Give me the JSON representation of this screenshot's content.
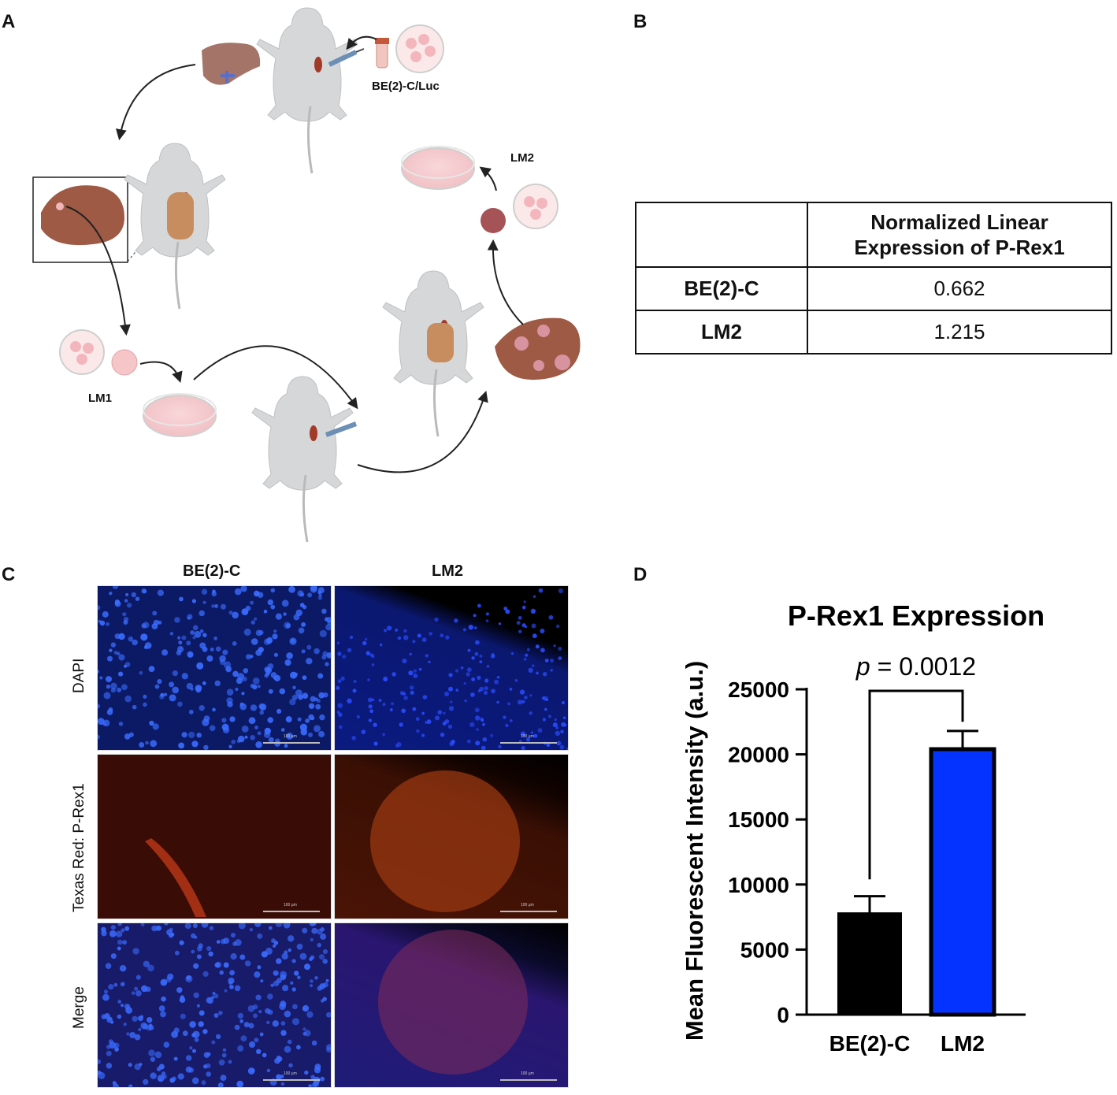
{
  "panels": {
    "a": "A",
    "b": "B",
    "c": "C",
    "d": "D"
  },
  "schematic": {
    "cell_line_label": "BE(2)-C/Luc",
    "lm1_label": "LM1",
    "lm2_label": "LM2"
  },
  "table": {
    "header": [
      "",
      "Normalized Linear Expression of P-Rex1"
    ],
    "rows": [
      {
        "name": "BE(2)-C",
        "value": "0.662"
      },
      {
        "name": "LM2",
        "value": "1.215"
      }
    ]
  },
  "micrographs": {
    "columns": [
      "BE(2)-C",
      "LM2"
    ],
    "rows": [
      "DAPI",
      "Texas Red: P-Rex1",
      "Merge"
    ],
    "scale_label": "100 µm"
  },
  "chart_data": {
    "type": "bar",
    "title": "P-Rex1 Expression",
    "xlabel": "",
    "ylabel": "Mean Fluorescent Intensity (a.u.)",
    "categories": [
      "BE(2)-C",
      "LM2"
    ],
    "values": [
      7800,
      20400
    ],
    "errors": [
      1300,
      1400
    ],
    "colors": [
      "#000000",
      "#0433ff"
    ],
    "ylim": [
      0,
      25000
    ],
    "yticks": [
      0,
      5000,
      10000,
      15000,
      20000,
      25000
    ],
    "annotation": {
      "p_symbol": "p",
      "p_text": " = 0.0012"
    }
  }
}
